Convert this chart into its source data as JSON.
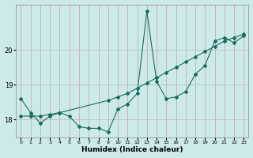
{
  "title": "",
  "xlabel": "Humidex (Indice chaleur)",
  "ylabel": "",
  "background_color": "#cdeaea",
  "line_color": "#1a6b5e",
  "grid_color_v": "#c8a0a0",
  "grid_color_h": "#b8b8b8",
  "xlim": [
    -0.5,
    23.5
  ],
  "ylim": [
    17.5,
    21.3
  ],
  "yticks": [
    18,
    19,
    20
  ],
  "xtick_labels": [
    "0",
    "1",
    "2",
    "3",
    "4",
    "5",
    "6",
    "7",
    "8",
    "9",
    "10",
    "11",
    "12",
    "13",
    "14",
    "15",
    "16",
    "17",
    "18",
    "19",
    "20",
    "21",
    "22",
    "23"
  ],
  "line1_x": [
    0,
    1,
    2,
    3,
    4,
    5,
    6,
    7,
    8,
    9,
    10,
    11,
    12,
    13,
    14,
    15,
    16,
    17,
    18,
    19,
    20,
    21,
    22,
    23
  ],
  "line1_y": [
    18.6,
    18.2,
    17.9,
    18.1,
    18.2,
    18.1,
    17.8,
    17.75,
    17.75,
    17.65,
    18.3,
    18.45,
    18.75,
    21.1,
    19.1,
    18.6,
    18.65,
    18.8,
    19.3,
    19.55,
    20.25,
    20.35,
    20.2,
    20.4
  ],
  "line2_x": [
    0,
    1,
    2,
    3,
    4,
    9,
    10,
    11,
    12,
    13,
    14,
    15,
    16,
    17,
    18,
    19,
    20,
    21,
    22,
    23
  ],
  "line2_y": [
    18.1,
    18.1,
    18.1,
    18.15,
    18.2,
    18.55,
    18.65,
    18.75,
    18.9,
    19.05,
    19.2,
    19.35,
    19.5,
    19.65,
    19.8,
    19.95,
    20.1,
    20.25,
    20.35,
    20.45
  ],
  "marker": "D",
  "markersize": 2.0,
  "linewidth": 0.8
}
